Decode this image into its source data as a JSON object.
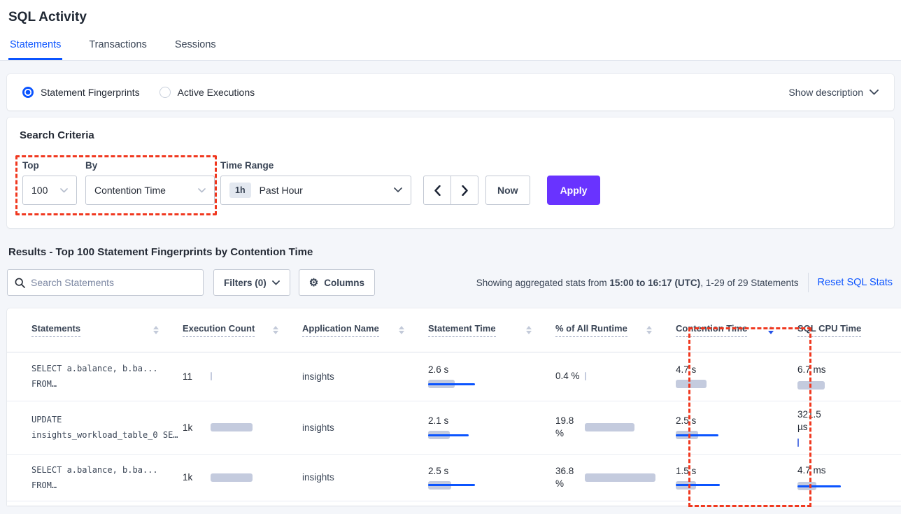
{
  "header": {
    "title": "SQL Activity"
  },
  "tabs": [
    {
      "label": "Statements"
    },
    {
      "label": "Transactions"
    },
    {
      "label": "Sessions"
    }
  ],
  "view_toggle": {
    "options": [
      {
        "label": "Statement Fingerprints",
        "selected": true
      },
      {
        "label": "Active Executions",
        "selected": false
      }
    ],
    "show_description_label": "Show description"
  },
  "search_criteria": {
    "title": "Search Criteria",
    "top_label": "Top",
    "top_value": "100",
    "by_label": "By",
    "by_value": "Contention Time",
    "time_range_label": "Time Range",
    "time_range_badge": "1h",
    "time_range_value": "Past Hour",
    "now_label": "Now",
    "apply_label": "Apply"
  },
  "results": {
    "heading": "Results - Top 100 Statement Fingerprints by Contention Time",
    "search_placeholder": "Search Statements",
    "filters_label": "Filters (0)",
    "columns_label": "Columns",
    "stats_prefix": "Showing aggregated stats from ",
    "stats_bold": "15:00 to 16:17 (UTC)",
    "stats_suffix": ", 1-29 of 29 Statements",
    "reset_label": "Reset SQL Stats"
  },
  "table": {
    "columns": [
      {
        "label": "Statements",
        "sort": "none"
      },
      {
        "label": "Execution Count",
        "sort": "none"
      },
      {
        "label": "Application Name",
        "sort": "none"
      },
      {
        "label": "Statement Time",
        "sort": "none"
      },
      {
        "label": "% of All Runtime",
        "sort": "none"
      },
      {
        "label": "Contention Time",
        "sort": "desc"
      },
      {
        "label": "SQL CPU Time",
        "sort": "hidden"
      }
    ],
    "rows": [
      {
        "statement": "SELECT a.balance, b.ba...\nFROM…",
        "execution_count": "11",
        "application": "insights",
        "statement_time": "2.6 s",
        "pct_runtime": "0.4 %",
        "contention_time": "4.7 s",
        "cpu_time": "6.7 ms",
        "bars": {
          "exec": {
            "gray": 2,
            "blue": 0
          },
          "time": {
            "gray": 38,
            "blue": 67
          },
          "pct": {
            "gray": 2,
            "blue": 0
          },
          "contention": {
            "gray": 44,
            "blue": 0
          },
          "cpu": {
            "gray": 39,
            "blue": 0
          }
        }
      },
      {
        "statement": "UPDATE\ninsights_workload_table_0 SE…",
        "execution_count": "1k",
        "application": "insights",
        "statement_time": "2.1 s",
        "pct_runtime": "19.8 %",
        "contention_time": "2.5 s",
        "cpu_time": "321.5 µs",
        "bars": {
          "exec": {
            "gray": 60,
            "blue": 0
          },
          "time": {
            "gray": 31,
            "blue": 58
          },
          "pct": {
            "gray": 71,
            "blue": 0
          },
          "contention": {
            "gray": 32,
            "blue": 61
          },
          "cpu": {
            "gray": 2,
            "blue": 0,
            "gray_color": "#5B79E4"
          }
        }
      },
      {
        "statement": "SELECT a.balance, b.ba...\nFROM…",
        "execution_count": "1k",
        "application": "insights",
        "statement_time": "2.5 s",
        "pct_runtime": "36.8 %",
        "contention_time": "1.5 s",
        "cpu_time": "4.7 ms",
        "bars": {
          "exec": {
            "gray": 60,
            "blue": 0
          },
          "time": {
            "gray": 33,
            "blue": 67
          },
          "pct": {
            "gray": 101,
            "blue": 0
          },
          "contention": {
            "gray": 29,
            "blue": 63
          },
          "cpu": {
            "gray": 27,
            "blue": 62
          }
        }
      }
    ]
  },
  "colors": {
    "accent_blue": "#0B54FF",
    "apply_purple": "#6933FF",
    "highlight_red": "#F0381F",
    "bar_gray": "#C4CBDE"
  }
}
